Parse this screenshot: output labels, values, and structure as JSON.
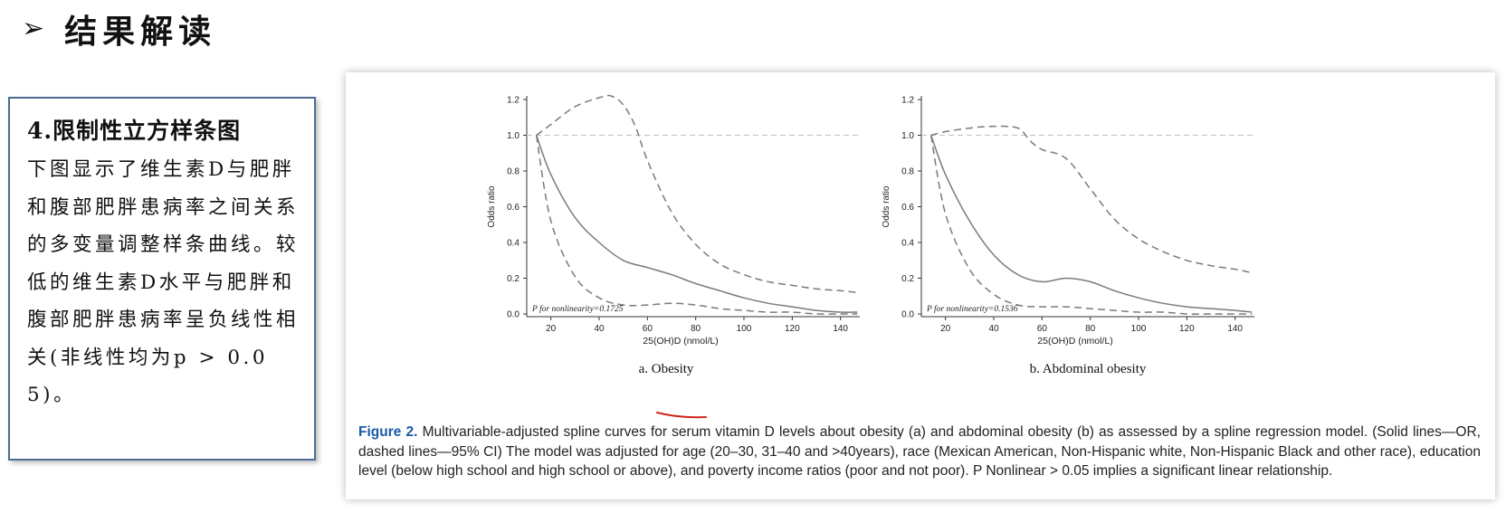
{
  "slide": {
    "arrow": "➢",
    "title": "结果解读"
  },
  "note": {
    "heading": "4.限制性立方样条图",
    "body": "下图显示了维生素D与肥胖和腹部肥胖患病率之间关系的多变量调整样条曲线。较低的维生素D水平与肥胖和腹部肥胖患病率呈负线性相关(非线性均为p > 0.05)。"
  },
  "figure": {
    "caption_label": "Figure 2.",
    "caption_text": "Multivariable-adjusted spline curves for serum vitamin D levels about obesity (a) and abdominal obesity (b) as assessed by a spline regression model. (Solid lines—OR, dashed lines—95% CI) The model was adjusted for age (20–30, 31–40 and >40years), race (Mexican American, Non-Hispanic white, Non-Hispanic Black and other race), education level (below high school and high school or above), and poverty income ratios (poor and not poor). P Nonlinear > 0.05 implies a significant linear relationship.",
    "colors": {
      "caption_label": "#1a5aa8",
      "curve": "#7a7a7a",
      "reference": "#c8c8c8",
      "annotation": "#d0241c"
    }
  },
  "chart_data": [
    {
      "type": "line",
      "subtitle": "a. Obesity",
      "xlabel": "25(OH)D (nmol/L)",
      "ylabel": "Odds ratio",
      "xlim": [
        10,
        148
      ],
      "ylim": [
        0,
        1.2
      ],
      "xticks": [
        20,
        40,
        60,
        80,
        100,
        120,
        140
      ],
      "yticks": [
        0.0,
        0.2,
        0.4,
        0.6,
        0.8,
        1.0,
        1.2
      ],
      "reference_line": 1.0,
      "annotation": "P for nonlinearity=0.1725",
      "series": [
        {
          "style": "solid",
          "x": [
            14,
            20,
            30,
            40,
            50,
            60,
            70,
            80,
            90,
            100,
            110,
            120,
            130,
            140,
            147
          ],
          "y": [
            1.0,
            0.78,
            0.54,
            0.4,
            0.3,
            0.26,
            0.22,
            0.17,
            0.13,
            0.09,
            0.06,
            0.04,
            0.02,
            0.01,
            0.01
          ]
        },
        {
          "style": "dashed",
          "x": [
            14,
            20,
            30,
            40,
            45,
            50,
            55,
            60,
            70,
            80,
            90,
            100,
            110,
            120,
            130,
            140,
            147
          ],
          "y": [
            1.0,
            1.06,
            1.16,
            1.21,
            1.22,
            1.17,
            1.05,
            0.86,
            0.57,
            0.39,
            0.28,
            0.22,
            0.18,
            0.16,
            0.14,
            0.13,
            0.12
          ]
        },
        {
          "style": "dashed",
          "x": [
            14,
            20,
            30,
            40,
            50,
            60,
            70,
            80,
            90,
            100,
            110,
            120,
            130,
            140,
            147
          ],
          "y": [
            1.0,
            0.52,
            0.21,
            0.09,
            0.05,
            0.05,
            0.06,
            0.05,
            0.03,
            0.02,
            0.01,
            0.01,
            0.0,
            0.0,
            0.0
          ]
        }
      ]
    },
    {
      "type": "line",
      "subtitle": "b. Abdominal obesity",
      "xlabel": "25(OH)D (nmol/L)",
      "ylabel": "Odds ratio",
      "xlim": [
        10,
        148
      ],
      "ylim": [
        0,
        1.2
      ],
      "xticks": [
        20,
        40,
        60,
        80,
        100,
        120,
        140
      ],
      "yticks": [
        0.0,
        0.2,
        0.4,
        0.6,
        0.8,
        1.0,
        1.2
      ],
      "reference_line": 1.0,
      "annotation": "P for nonlinearity=0.1536",
      "series": [
        {
          "style": "solid",
          "x": [
            14,
            20,
            30,
            40,
            50,
            60,
            70,
            80,
            90,
            100,
            110,
            120,
            130,
            140,
            147
          ],
          "y": [
            1.0,
            0.78,
            0.52,
            0.33,
            0.22,
            0.18,
            0.2,
            0.18,
            0.13,
            0.09,
            0.06,
            0.04,
            0.03,
            0.02,
            0.01
          ]
        },
        {
          "style": "dashed",
          "x": [
            14,
            20,
            30,
            40,
            50,
            55,
            60,
            70,
            80,
            90,
            100,
            110,
            120,
            130,
            140,
            147
          ],
          "y": [
            1.0,
            1.02,
            1.04,
            1.05,
            1.04,
            0.97,
            0.92,
            0.87,
            0.7,
            0.53,
            0.42,
            0.35,
            0.3,
            0.27,
            0.25,
            0.23
          ]
        },
        {
          "style": "dashed",
          "x": [
            14,
            20,
            30,
            40,
            50,
            60,
            70,
            80,
            90,
            100,
            110,
            120,
            130,
            140,
            147
          ],
          "y": [
            1.0,
            0.56,
            0.25,
            0.11,
            0.05,
            0.04,
            0.04,
            0.03,
            0.02,
            0.01,
            0.01,
            0.0,
            0.0,
            0.0,
            0.0
          ]
        }
      ]
    }
  ]
}
